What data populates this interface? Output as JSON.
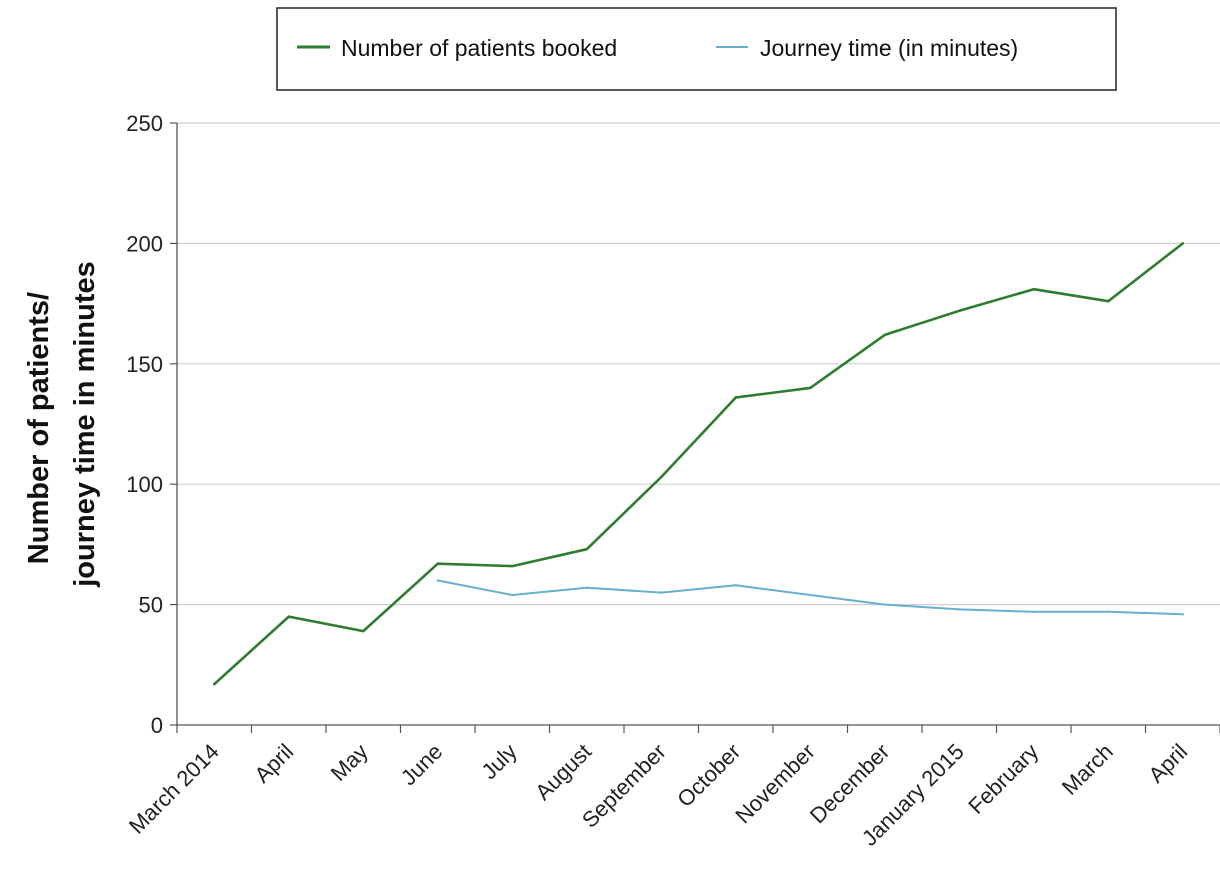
{
  "chart_data": {
    "type": "line",
    "categories": [
      "March 2014",
      "April",
      "May",
      "June",
      "July",
      "August",
      "September",
      "October",
      "November",
      "December",
      "January 2015",
      "February",
      "March",
      "April"
    ],
    "series": [
      {
        "name": "Number of patients booked",
        "color": "#2e7d2e",
        "values": [
          17,
          45,
          39,
          67,
          66,
          73,
          103,
          136,
          140,
          162,
          172,
          181,
          176,
          200
        ]
      },
      {
        "name": "Journey time (in minutes)",
        "color": "#6aaed0",
        "values": [
          null,
          null,
          null,
          60,
          54,
          57,
          55,
          58,
          54,
          50,
          48,
          47,
          47,
          46
        ]
      }
    ],
    "ylabel_lines": [
      "Number of patients/",
      "journey time in minutes"
    ],
    "ylim": [
      0,
      250
    ],
    "yticks": [
      0,
      50,
      100,
      150,
      200,
      250
    ],
    "grid": true,
    "legend_position": "top"
  }
}
